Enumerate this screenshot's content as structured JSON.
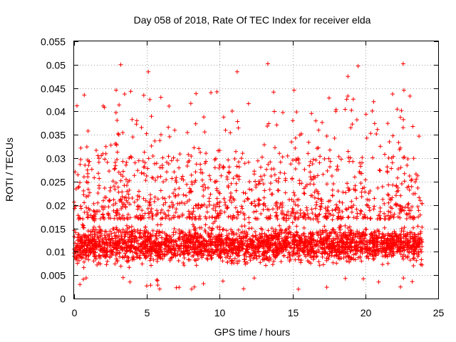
{
  "colors": {
    "series": "#ff0000",
    "grid": "#a0a0a0",
    "axis": "#000000"
  },
  "chart_data": {
    "type": "scatter",
    "title": "Day 058 of 2018, Rate Of TEC Index for receiver elda",
    "xlabel": "GPS time / hours",
    "ylabel": "ROTI / TECUs",
    "xlim": [
      0,
      25
    ],
    "ylim": [
      0,
      0.055
    ],
    "xticks": [
      0,
      5,
      10,
      15,
      20,
      25
    ],
    "xtick_labels": [
      "0",
      "5",
      "10",
      "15",
      "20",
      "25"
    ],
    "yticks": [
      0,
      0.005,
      0.01,
      0.015,
      0.02,
      0.025,
      0.03,
      0.035,
      0.04,
      0.045,
      0.05,
      0.055
    ],
    "ytick_labels": [
      "0",
      "0.005",
      "0.01",
      "0.015",
      "0.02",
      "0.025",
      "0.03",
      "0.035",
      "0.04",
      "0.045",
      "0.05",
      "0.055"
    ],
    "grid": true,
    "marker": "+",
    "series": [
      {
        "name": "ROTI",
        "color": "#ff0000",
        "x_range": [
          0,
          23.9
        ],
        "dense_band": [
          0.006,
          0.017
        ],
        "typical_max": 0.03,
        "peaks": [
          {
            "x": 3.2,
            "y": 0.05
          },
          {
            "x": 5.1,
            "y": 0.0485
          },
          {
            "x": 11.2,
            "y": 0.0485
          },
          {
            "x": 13.3,
            "y": 0.0502
          },
          {
            "x": 18.8,
            "y": 0.0475
          },
          {
            "x": 19.5,
            "y": 0.0497
          },
          {
            "x": 22.6,
            "y": 0.0502
          },
          {
            "x": 15.4,
            "y": 0.002
          },
          {
            "x": 0.4,
            "y": 0.003
          }
        ]
      }
    ]
  }
}
